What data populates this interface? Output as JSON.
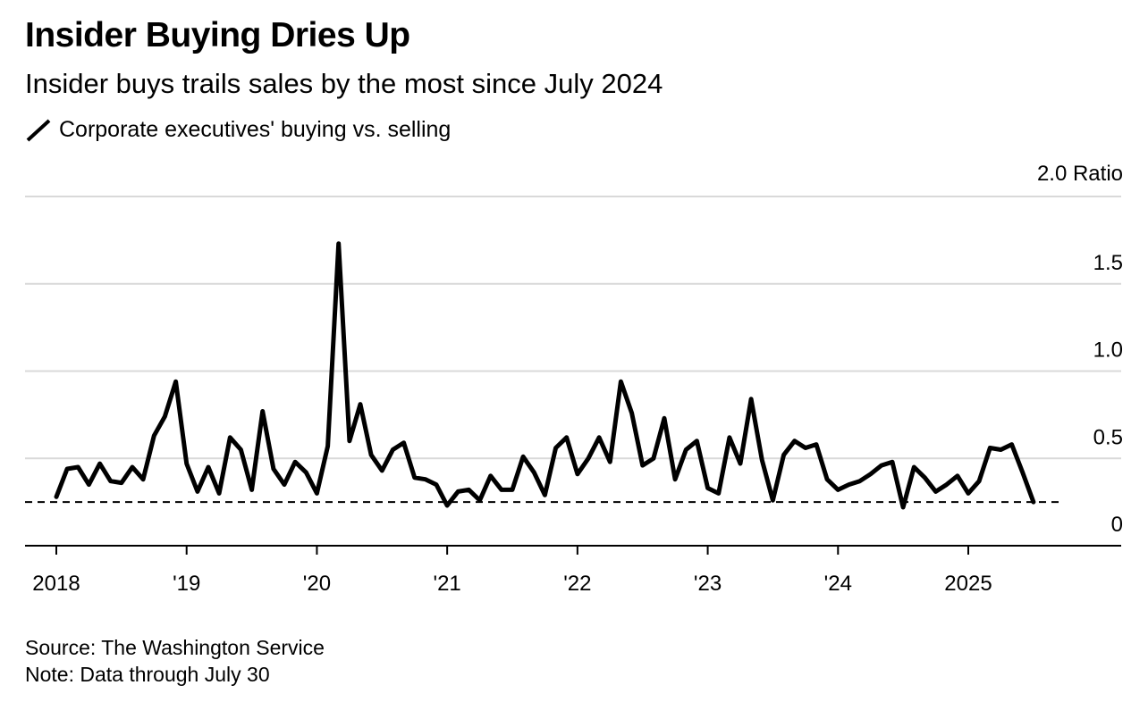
{
  "title": "Insider Buying Dries Up",
  "subtitle": "Insider buys trails sales by the most since July 2024",
  "footer": {
    "source": "Source: The Washington Service",
    "note": "Note: Data through July 30"
  },
  "chart_data": {
    "type": "line",
    "title": "Insider Buying Dries Up",
    "subtitle": "Insider buys trails sales by the most since July 2024",
    "ylabel": "Ratio",
    "ylim": [
      0,
      2.0
    ],
    "grid": true,
    "legend_position": "top-left",
    "y_ticks": [
      {
        "value": 0,
        "label": "0"
      },
      {
        "value": 0.5,
        "label": "0.5"
      },
      {
        "value": 1.0,
        "label": "1.0"
      },
      {
        "value": 1.5,
        "label": "1.5"
      },
      {
        "value": 2.0,
        "label": "2.0 Ratio"
      }
    ],
    "x_ticks": [
      {
        "value": 2018,
        "label": "2018"
      },
      {
        "value": 2019,
        "label": "'19"
      },
      {
        "value": 2020,
        "label": "'20"
      },
      {
        "value": 2021,
        "label": "'21"
      },
      {
        "value": 2022,
        "label": "'22"
      },
      {
        "value": 2023,
        "label": "'23"
      },
      {
        "value": 2024,
        "label": "'24"
      },
      {
        "value": 2025,
        "label": "2025"
      }
    ],
    "reference_line": {
      "value": 0.25,
      "style": "dashed"
    },
    "series": [
      {
        "name": "Corporate executives' buying vs. selling",
        "color": "#000000",
        "x": [
          "2018-01",
          "2018-02",
          "2018-03",
          "2018-04",
          "2018-05",
          "2018-06",
          "2018-07",
          "2018-08",
          "2018-09",
          "2018-10",
          "2018-11",
          "2018-12",
          "2019-01",
          "2019-02",
          "2019-03",
          "2019-04",
          "2019-05",
          "2019-06",
          "2019-07",
          "2019-08",
          "2019-09",
          "2019-10",
          "2019-11",
          "2019-12",
          "2020-01",
          "2020-02",
          "2020-03",
          "2020-04",
          "2020-05",
          "2020-06",
          "2020-07",
          "2020-08",
          "2020-09",
          "2020-10",
          "2020-11",
          "2020-12",
          "2021-01",
          "2021-02",
          "2021-03",
          "2021-04",
          "2021-05",
          "2021-06",
          "2021-07",
          "2021-08",
          "2021-09",
          "2021-10",
          "2021-11",
          "2021-12",
          "2022-01",
          "2022-02",
          "2022-03",
          "2022-04",
          "2022-05",
          "2022-06",
          "2022-07",
          "2022-08",
          "2022-09",
          "2022-10",
          "2022-11",
          "2022-12",
          "2023-01",
          "2023-02",
          "2023-03",
          "2023-04",
          "2023-05",
          "2023-06",
          "2023-07",
          "2023-08",
          "2023-09",
          "2023-10",
          "2023-11",
          "2023-12",
          "2024-01",
          "2024-02",
          "2024-03",
          "2024-04",
          "2024-05",
          "2024-06",
          "2024-07",
          "2024-08",
          "2024-09",
          "2024-10",
          "2024-11",
          "2024-12",
          "2025-01",
          "2025-02",
          "2025-03",
          "2025-04",
          "2025-05",
          "2025-06",
          "2025-07"
        ],
        "values": [
          0.28,
          0.44,
          0.45,
          0.35,
          0.47,
          0.37,
          0.36,
          0.45,
          0.38,
          0.63,
          0.74,
          0.94,
          0.47,
          0.31,
          0.45,
          0.3,
          0.62,
          0.55,
          0.32,
          0.77,
          0.44,
          0.35,
          0.48,
          0.42,
          0.3,
          0.57,
          1.73,
          0.6,
          0.81,
          0.52,
          0.43,
          0.55,
          0.59,
          0.39,
          0.38,
          0.35,
          0.23,
          0.31,
          0.32,
          0.26,
          0.4,
          0.32,
          0.32,
          0.51,
          0.42,
          0.29,
          0.56,
          0.62,
          0.41,
          0.5,
          0.62,
          0.48,
          0.94,
          0.76,
          0.46,
          0.5,
          0.73,
          0.38,
          0.55,
          0.6,
          0.33,
          0.3,
          0.62,
          0.47,
          0.84,
          0.49,
          0.26,
          0.52,
          0.6,
          0.56,
          0.58,
          0.38,
          0.32,
          0.35,
          0.37,
          0.41,
          0.46,
          0.48,
          0.22,
          0.45,
          0.39,
          0.31,
          0.35,
          0.4,
          0.3,
          0.37,
          0.56,
          0.55,
          0.58,
          0.42,
          0.25
        ]
      }
    ]
  }
}
